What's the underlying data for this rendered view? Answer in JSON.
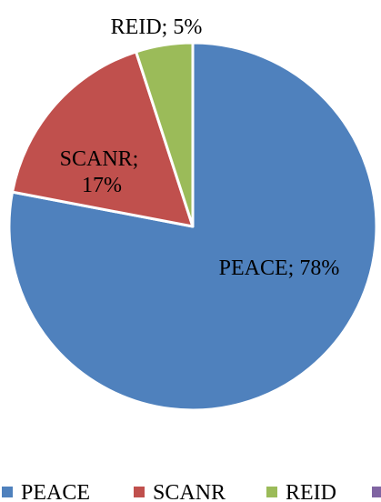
{
  "chart_data": {
    "type": "pie",
    "title": "",
    "slices": [
      {
        "label": "PEACE",
        "value": 78,
        "display": "PEACE; 78%",
        "color": "#4F81BD"
      },
      {
        "label": "SCANR",
        "value": 17,
        "display_lines": [
          "SCANR;",
          "17%"
        ],
        "color": "#C0504D"
      },
      {
        "label": "REID",
        "value": 5,
        "display": "REID; 5%",
        "color": "#9BBB59"
      }
    ],
    "legend": {
      "placement": "bottom",
      "entries": [
        {
          "label": "PEACE",
          "color": "#4F81BD"
        },
        {
          "label": "SCANR",
          "color": "#C0504D"
        },
        {
          "label": "REID",
          "color": "#9BBB59"
        },
        {
          "label": "",
          "color": "#8064A2"
        }
      ]
    }
  }
}
